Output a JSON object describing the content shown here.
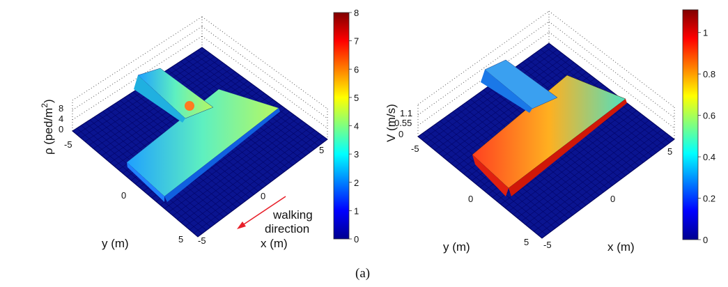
{
  "caption": "(a)",
  "colors": {
    "floor": "#0a1490",
    "grid": "#00005a",
    "arrow": "#e8202a"
  },
  "chart_data": [
    {
      "type": "surface",
      "zlabel": "ρ (ped/m²)",
      "zlabel_main": "ρ (ped/m",
      "zlabel_sup": "2",
      "zlabel_end": ")",
      "xlabel": "x (m)",
      "ylabel": "y (m)",
      "x_ticks": [
        "-5",
        "0",
        "5"
      ],
      "y_ticks": [
        "-5",
        "0",
        "5"
      ],
      "z_ticks": [
        "0",
        "4",
        "8"
      ],
      "zlim": [
        0,
        8
      ],
      "colorbar_ticks": [
        "0",
        "1",
        "2",
        "3",
        "4",
        "5",
        "6",
        "7",
        "8"
      ],
      "annotation": [
        "walking",
        "direction"
      ]
    },
    {
      "type": "surface",
      "zlabel": "V (m/s)",
      "xlabel": "x (m)",
      "ylabel": "y (m)",
      "x_ticks": [
        "-5",
        "0",
        "5"
      ],
      "y_ticks": [
        "-5",
        "0",
        "5"
      ],
      "z_ticks": [
        "0",
        "0.55",
        "1.1"
      ],
      "zlim": [
        0,
        1.1
      ],
      "colorbar_ticks": [
        "0",
        "0.2",
        "0.4",
        "0.6",
        "0.8",
        "1"
      ]
    }
  ]
}
